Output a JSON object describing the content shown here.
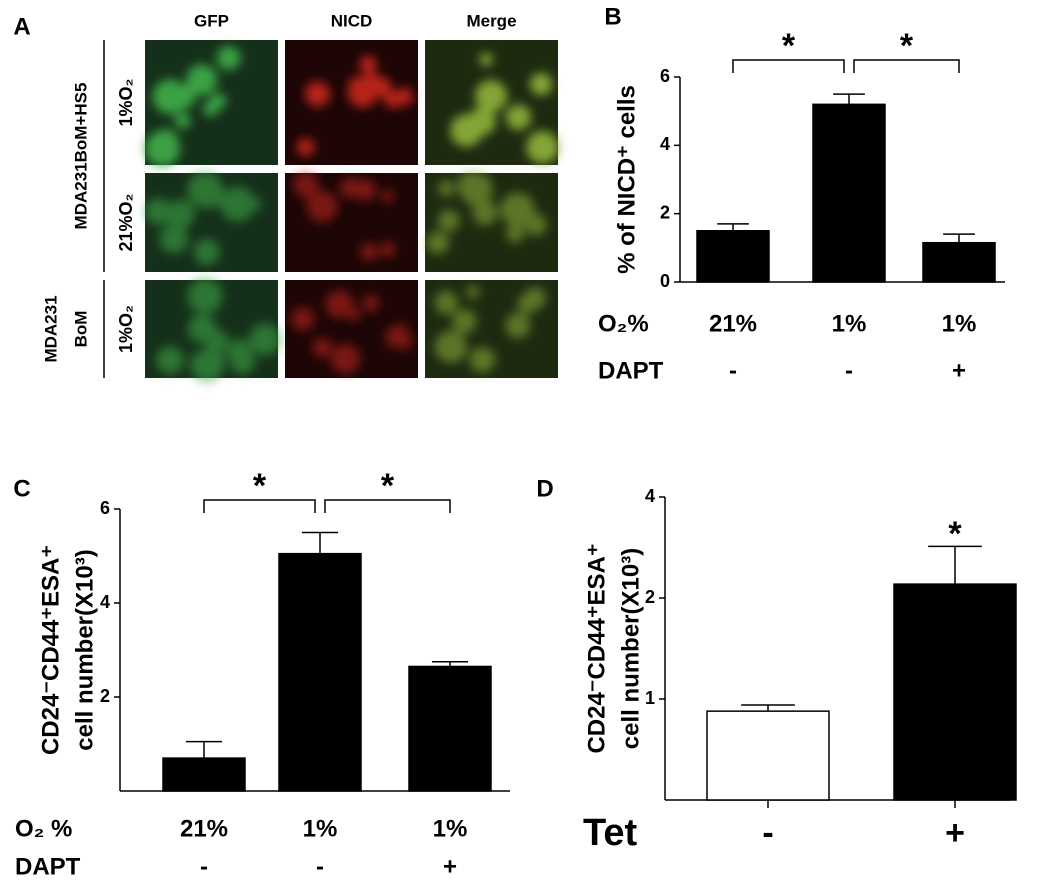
{
  "panel_a": {
    "label": "A",
    "columns": [
      "GFP",
      "NICD",
      "Merge"
    ],
    "groups": [
      {
        "name": [
          "MDA231BoM+HS5"
        ],
        "rows": [
          "1%O₂",
          "21%O₂"
        ]
      },
      {
        "name": [
          "MDA231",
          "BoM"
        ],
        "rows": [
          "1%O₂"
        ]
      }
    ]
  },
  "chart_data": [
    {
      "type": "bar",
      "panel_label": "B",
      "ylabel": [
        "% of NICD⁺ cells"
      ],
      "categories": [
        [
          "21%",
          "-"
        ],
        [
          "1%",
          "-"
        ],
        [
          "1%",
          "+"
        ]
      ],
      "category_row_labels": [
        "O₂%",
        "DAPT"
      ],
      "values": [
        1.5,
        5.2,
        1.15
      ],
      "errors": [
        0.2,
        0.3,
        0.25
      ],
      "colors": [
        "#000000",
        "#000000",
        "#000000"
      ],
      "ylim": [
        0,
        6
      ],
      "yticks": [
        0,
        2,
        4,
        6
      ],
      "log_scale": false,
      "significance": [
        {
          "label": "*",
          "between": [
            0,
            1
          ]
        },
        {
          "label": "*",
          "between": [
            1,
            2
          ]
        }
      ]
    },
    {
      "type": "bar",
      "panel_label": "C",
      "ylabel": [
        "CD24⁻CD44⁺ESA⁺",
        "cell number(X10³)"
      ],
      "categories": [
        [
          "21%",
          "-"
        ],
        [
          "1%",
          "-"
        ],
        [
          "1%",
          "+"
        ]
      ],
      "category_row_labels": [
        "O₂ %",
        "DAPT"
      ],
      "values": [
        0.7,
        5.05,
        2.65
      ],
      "errors": [
        0.35,
        0.45,
        0.1
      ],
      "colors": [
        "#000000",
        "#000000",
        "#000000"
      ],
      "ylim": [
        0,
        6
      ],
      "yticks": [
        2,
        4,
        6
      ],
      "log_scale": false,
      "significance": [
        {
          "label": "*",
          "between": [
            0,
            1
          ]
        },
        {
          "label": "*",
          "between": [
            1,
            2
          ]
        }
      ]
    },
    {
      "type": "bar",
      "panel_label": "D",
      "ylabel": [
        "CD24⁻CD44⁺ESA⁺",
        "cell number(X10³)"
      ],
      "categories": [
        [
          "-"
        ],
        [
          "+"
        ]
      ],
      "category_row_labels": [
        "Tet"
      ],
      "values": [
        0.92,
        2.2
      ],
      "errors": [
        0.04,
        0.65
      ],
      "colors": [
        "#ffffff",
        "#000000"
      ],
      "ylim": [
        0.5,
        4
      ],
      "yticks": [
        1,
        2,
        4
      ],
      "log_scale": true,
      "significance": [
        {
          "label": "*",
          "over": 1
        }
      ]
    }
  ]
}
